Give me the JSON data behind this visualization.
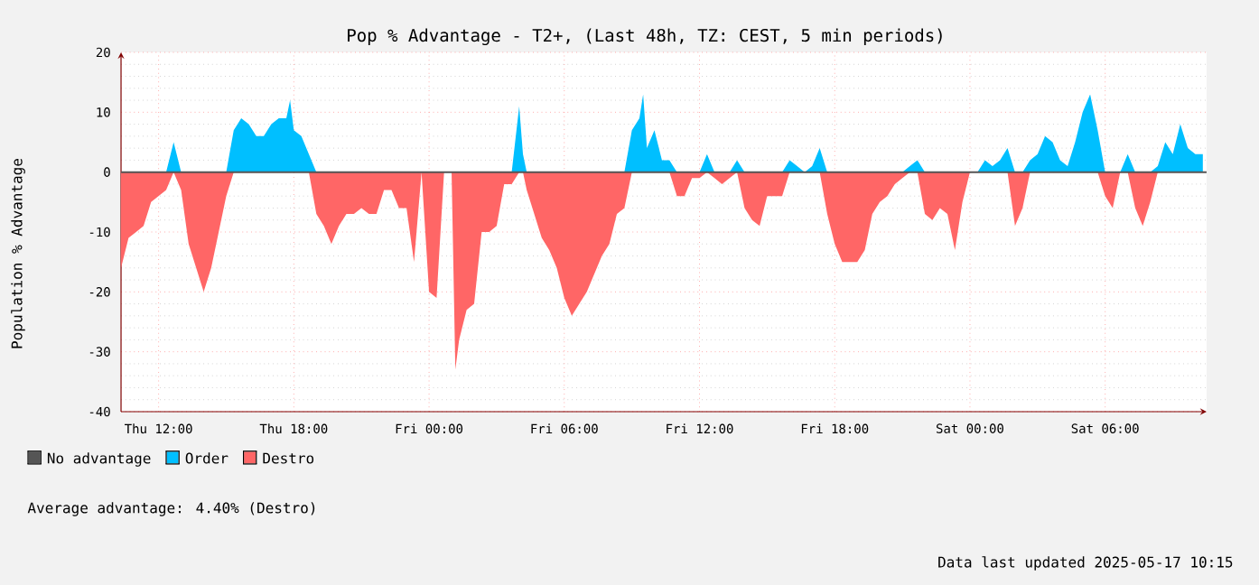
{
  "chart_data": {
    "type": "area",
    "title": "Pop % Advantage - T2+, (Last 48h, TZ: CEST, 5 min periods)",
    "ylabel": "Population % Advantage",
    "x": [
      "2025-05-15T10:20",
      "2025-05-15T10:40",
      "2025-05-15T11:00",
      "2025-05-15T11:20",
      "2025-05-15T11:40",
      "2025-05-15T12:00",
      "2025-05-15T12:20",
      "2025-05-15T12:40",
      "2025-05-15T13:00",
      "2025-05-15T13:20",
      "2025-05-15T13:40",
      "2025-05-15T14:00",
      "2025-05-15T14:20",
      "2025-05-15T14:40",
      "2025-05-15T15:00",
      "2025-05-15T15:20",
      "2025-05-15T15:40",
      "2025-05-15T16:00",
      "2025-05-15T16:20",
      "2025-05-15T16:40",
      "2025-05-15T17:00",
      "2025-05-15T17:20",
      "2025-05-15T17:40",
      "2025-05-15T17:50",
      "2025-05-15T18:00",
      "2025-05-15T18:20",
      "2025-05-15T18:40",
      "2025-05-15T19:00",
      "2025-05-15T19:20",
      "2025-05-15T19:40",
      "2025-05-15T20:00",
      "2025-05-15T20:20",
      "2025-05-15T20:40",
      "2025-05-15T21:00",
      "2025-05-15T21:20",
      "2025-05-15T21:40",
      "2025-05-15T22:00",
      "2025-05-15T22:20",
      "2025-05-15T22:40",
      "2025-05-15T23:00",
      "2025-05-15T23:20",
      "2025-05-15T23:40",
      "2025-05-16T00:00",
      "2025-05-16T00:20",
      "2025-05-16T00:40",
      "2025-05-16T01:00",
      "2025-05-16T01:10",
      "2025-05-16T01:20",
      "2025-05-16T01:40",
      "2025-05-16T02:00",
      "2025-05-16T02:20",
      "2025-05-16T02:40",
      "2025-05-16T03:00",
      "2025-05-16T03:20",
      "2025-05-16T03:40",
      "2025-05-16T04:00",
      "2025-05-16T04:10",
      "2025-05-16T04:20",
      "2025-05-16T04:40",
      "2025-05-16T05:00",
      "2025-05-16T05:20",
      "2025-05-16T05:40",
      "2025-05-16T06:00",
      "2025-05-16T06:20",
      "2025-05-16T06:40",
      "2025-05-16T07:00",
      "2025-05-16T07:20",
      "2025-05-16T07:40",
      "2025-05-16T08:00",
      "2025-05-16T08:20",
      "2025-05-16T08:40",
      "2025-05-16T09:00",
      "2025-05-16T09:20",
      "2025-05-16T09:30",
      "2025-05-16T09:40",
      "2025-05-16T10:00",
      "2025-05-16T10:20",
      "2025-05-16T10:40",
      "2025-05-16T11:00",
      "2025-05-16T11:20",
      "2025-05-16T11:40",
      "2025-05-16T12:00",
      "2025-05-16T12:20",
      "2025-05-16T12:40",
      "2025-05-16T13:00",
      "2025-05-16T13:20",
      "2025-05-16T13:40",
      "2025-05-16T14:00",
      "2025-05-16T14:20",
      "2025-05-16T14:40",
      "2025-05-16T15:00",
      "2025-05-16T15:20",
      "2025-05-16T15:40",
      "2025-05-16T16:00",
      "2025-05-16T16:20",
      "2025-05-16T16:40",
      "2025-05-16T17:00",
      "2025-05-16T17:20",
      "2025-05-16T17:40",
      "2025-05-16T18:00",
      "2025-05-16T18:20",
      "2025-05-16T18:40",
      "2025-05-16T19:00",
      "2025-05-16T19:20",
      "2025-05-16T19:40",
      "2025-05-16T20:00",
      "2025-05-16T20:20",
      "2025-05-16T20:40",
      "2025-05-16T21:00",
      "2025-05-16T21:20",
      "2025-05-16T21:40",
      "2025-05-16T22:00",
      "2025-05-16T22:20",
      "2025-05-16T22:40",
      "2025-05-16T23:00",
      "2025-05-16T23:20",
      "2025-05-16T23:40",
      "2025-05-17T00:00",
      "2025-05-17T00:20",
      "2025-05-17T00:40",
      "2025-05-17T01:00",
      "2025-05-17T01:20",
      "2025-05-17T01:40",
      "2025-05-17T02:00",
      "2025-05-17T02:20",
      "2025-05-17T02:40",
      "2025-05-17T03:00",
      "2025-05-17T03:20",
      "2025-05-17T03:40",
      "2025-05-17T04:00",
      "2025-05-17T04:20",
      "2025-05-17T04:40",
      "2025-05-17T05:00",
      "2025-05-17T05:20",
      "2025-05-17T05:40",
      "2025-05-17T06:00",
      "2025-05-17T06:20",
      "2025-05-17T06:40",
      "2025-05-17T07:00",
      "2025-05-17T07:20",
      "2025-05-17T07:40",
      "2025-05-17T08:00",
      "2025-05-17T08:20",
      "2025-05-17T08:40",
      "2025-05-17T09:00",
      "2025-05-17T09:20",
      "2025-05-17T09:40",
      "2025-05-17T10:00",
      "2025-05-17T10:20"
    ],
    "series": [
      {
        "name": "No advantage",
        "type": "line",
        "color": "#555555",
        "x": [
          "2025-05-15T10:20",
          "2025-05-17T10:30"
        ],
        "values": [
          0,
          0
        ]
      },
      {
        "name": "Order",
        "color": "#00bfff",
        "values": [
          0,
          0,
          0,
          0,
          0,
          0,
          0,
          5,
          0,
          0,
          0,
          0,
          0,
          0,
          0,
          7,
          9,
          8,
          6,
          6,
          8,
          9,
          9,
          12,
          7,
          6,
          3,
          0,
          0,
          0,
          0,
          0,
          0,
          0,
          0,
          0,
          0,
          0,
          0,
          0,
          0,
          0,
          0,
          0,
          0,
          0,
          0,
          0,
          0,
          0,
          0,
          0,
          0,
          0,
          0,
          11,
          3,
          0,
          0,
          0,
          0,
          0,
          0,
          0,
          0,
          0,
          0,
          0,
          0,
          0,
          0,
          7,
          9,
          13,
          4,
          7,
          2,
          2,
          0,
          0,
          0,
          0,
          3,
          0,
          0,
          0,
          2,
          0,
          0,
          0,
          0,
          0,
          0,
          2,
          1,
          0,
          1,
          4,
          0,
          0,
          0,
          0,
          0,
          0,
          0,
          0,
          0,
          0,
          0,
          1,
          2,
          0,
          0,
          0,
          0,
          0,
          0,
          0,
          0,
          2,
          1,
          2,
          4,
          0,
          0,
          2,
          3,
          6,
          5,
          2,
          1,
          5,
          10,
          13,
          7,
          0,
          0,
          0,
          3,
          0,
          0,
          0,
          1,
          5,
          3,
          8,
          4,
          3,
          3
        ]
      },
      {
        "name": "Destro",
        "color": "#ff6666",
        "values": [
          -16,
          -11,
          -10,
          -9,
          -5,
          -4,
          -3,
          0,
          -3,
          -12,
          -16,
          -20,
          -16,
          -10,
          -4,
          0,
          0,
          0,
          0,
          0,
          0,
          0,
          0,
          0,
          0,
          0,
          0,
          -7,
          -9,
          -12,
          -9,
          -7,
          -7,
          -6,
          -7,
          -7,
          -3,
          -3,
          -6,
          -6,
          -15,
          0,
          -20,
          -21,
          0,
          0,
          -33,
          -28,
          -23,
          -22,
          -10,
          -10,
          -9,
          -2,
          -2,
          0,
          0,
          -3,
          -7,
          -11,
          -13,
          -16,
          -21,
          -24,
          -22,
          -20,
          -17,
          -14,
          -12,
          -7,
          -6,
          0,
          0,
          0,
          0,
          0,
          0,
          0,
          -4,
          -4,
          -1,
          -1,
          0,
          -1,
          -2,
          -1,
          0,
          -6,
          -8,
          -9,
          -4,
          -4,
          -4,
          0,
          0,
          0,
          0,
          0,
          -7,
          -12,
          -15,
          -15,
          -15,
          -13,
          -7,
          -5,
          -4,
          -2,
          -1,
          0,
          0,
          -7,
          -8,
          -6,
          -7,
          -13,
          -5,
          0,
          0,
          0,
          0,
          0,
          0,
          -9,
          -6,
          0,
          0,
          0,
          0,
          0,
          0,
          0,
          0,
          0,
          0,
          -4,
          -6,
          0,
          0,
          -6,
          -9,
          -5,
          0,
          0,
          0,
          0,
          0,
          0,
          0
        ]
      }
    ],
    "xlim": [
      "2025-05-15T10:20",
      "2025-05-17T10:30"
    ],
    "xticks": [
      {
        "value": "2025-05-15T12:00",
        "label": "Thu 12:00"
      },
      {
        "value": "2025-05-15T18:00",
        "label": "Thu 18:00"
      },
      {
        "value": "2025-05-16T00:00",
        "label": "Fri 00:00"
      },
      {
        "value": "2025-05-16T06:00",
        "label": "Fri 06:00"
      },
      {
        "value": "2025-05-16T12:00",
        "label": "Fri 12:00"
      },
      {
        "value": "2025-05-16T18:00",
        "label": "Fri 18:00"
      },
      {
        "value": "2025-05-17T00:00",
        "label": "Sat 00:00"
      },
      {
        "value": "2025-05-17T06:00",
        "label": "Sat 06:00"
      }
    ],
    "ylim": [
      -40,
      20
    ],
    "yticks": [
      -40,
      -30,
      -20,
      -10,
      0,
      10,
      20
    ],
    "grid": true,
    "legend": "bottom",
    "annotations": [
      "Average advantage: 4.40% (Destro)",
      "Data last updated 2025-05-17 10:15"
    ]
  }
}
